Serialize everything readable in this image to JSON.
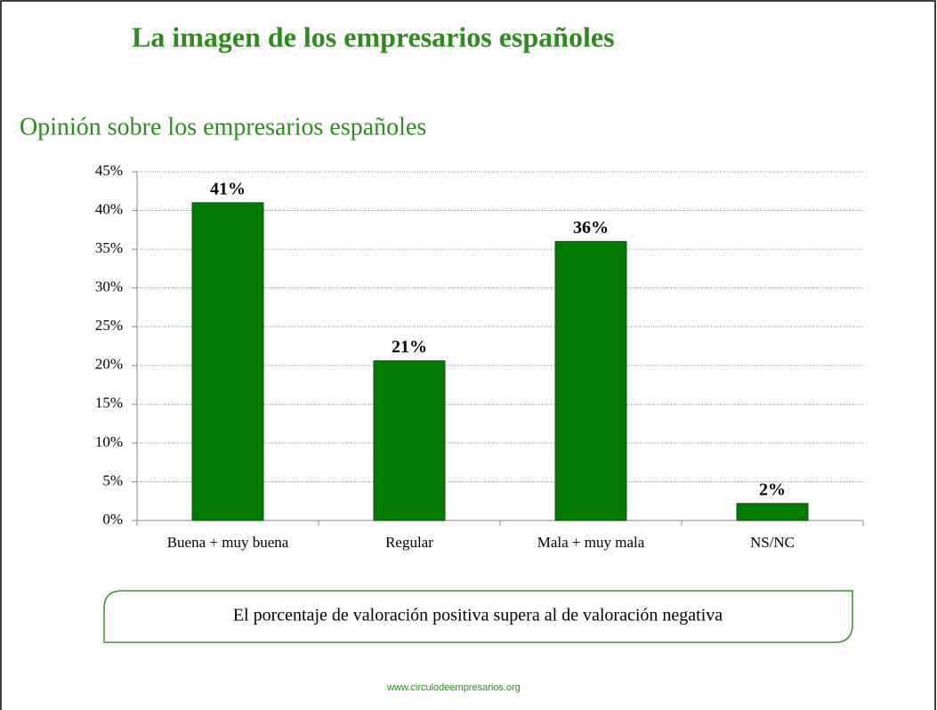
{
  "title": "La imagen de los empresarios españoles",
  "note": "El porcentaje de valoración positiva supera al de valoración negativa",
  "footer": "www.circulodeempresarios.org",
  "chart_data": {
    "type": "bar",
    "title": "Opinión sobre los empresarios españoles",
    "categories": [
      "Buena + muy buena",
      "Regular",
      "Mala + muy mala",
      "NS/NC"
    ],
    "values": [
      41,
      20.6,
      36,
      2.2
    ],
    "value_labels": [
      "41%",
      "21%",
      "36%",
      "2%"
    ],
    "color": "#007a00",
    "ylim": [
      0,
      45
    ],
    "yticks": [
      {
        "value": 0,
        "label": "0%"
      },
      {
        "value": 5,
        "label": "5%"
      },
      {
        "value": 10,
        "label": "10%"
      },
      {
        "value": 15,
        "label": "15%"
      },
      {
        "value": 20,
        "label": "20%"
      },
      {
        "value": 25,
        "label": "25%"
      },
      {
        "value": 30,
        "label": "30%"
      },
      {
        "value": 35,
        "label": "35%"
      },
      {
        "value": 40,
        "label": "40%"
      },
      {
        "value": 45,
        "label": "45%"
      }
    ],
    "grid": true
  }
}
